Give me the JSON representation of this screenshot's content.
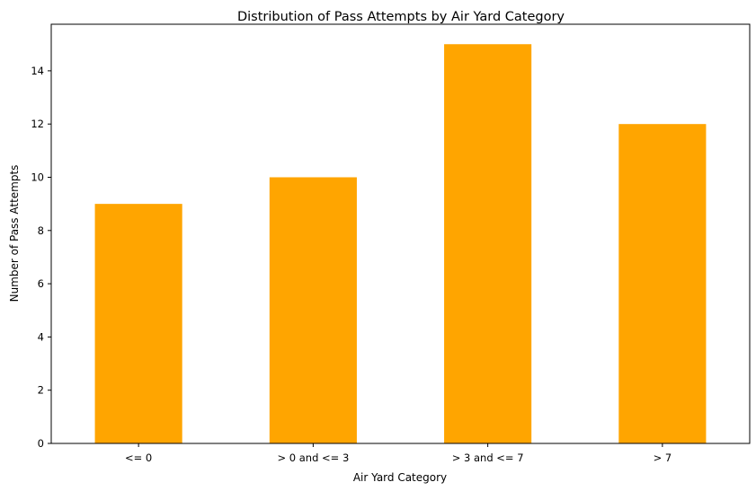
{
  "chart_data": {
    "type": "bar",
    "title": "Distribution of Pass Attempts by Air Yard Category",
    "xlabel": "Air Yard Category",
    "ylabel": "Number of Pass Attempts",
    "categories": [
      "<= 0",
      "> 0 and <= 3",
      "> 3 and <= 7",
      "> 7"
    ],
    "values": [
      9,
      10,
      15,
      12
    ],
    "ylim": [
      0,
      15.75
    ],
    "yticks": [
      0,
      2,
      4,
      6,
      8,
      10,
      12,
      14
    ],
    "grid": false,
    "bar_color": "#ffa500",
    "legend": "none"
  }
}
